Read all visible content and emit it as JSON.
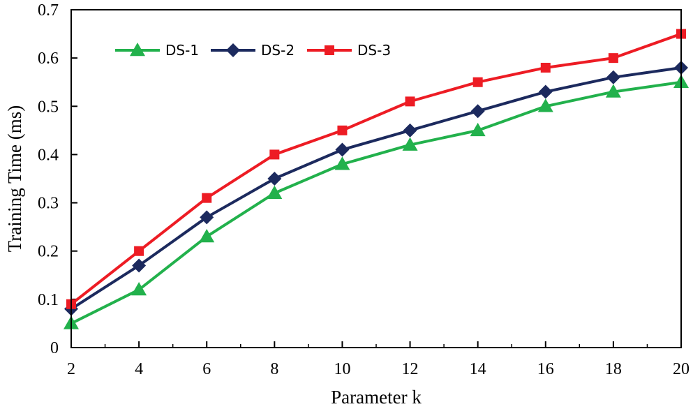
{
  "chart_data": {
    "type": "line",
    "title": "",
    "xlabel": "Parameter k",
    "ylabel": "Training Time (ms)",
    "x": [
      2,
      4,
      6,
      8,
      10,
      12,
      14,
      16,
      18,
      20
    ],
    "xlim": [
      2,
      20
    ],
    "ylim": [
      0,
      0.7
    ],
    "x_ticks": [
      2,
      4,
      6,
      8,
      10,
      12,
      14,
      16,
      18,
      20
    ],
    "x_tick_labels": [
      "2",
      "4",
      "6",
      "8",
      "10",
      "12",
      "14",
      "16",
      "18",
      "20"
    ],
    "y_ticks": [
      0,
      0.1,
      0.2,
      0.3,
      0.4,
      0.5,
      0.6,
      0.7
    ],
    "y_tick_labels": [
      "0",
      "0.1",
      "0.2",
      "0.3",
      "0.4",
      "0.5",
      "0.6",
      "0.7"
    ],
    "grid": false,
    "legend_position": "top-left",
    "series": [
      {
        "name": "DS-1",
        "marker": "triangle",
        "color": "#22b14c",
        "values": [
          0.05,
          0.12,
          0.23,
          0.32,
          0.38,
          0.42,
          0.45,
          0.5,
          0.53,
          0.55
        ]
      },
      {
        "name": "DS-2",
        "marker": "diamond",
        "color": "#1c2a5e",
        "values": [
          0.08,
          0.17,
          0.27,
          0.35,
          0.41,
          0.45,
          0.49,
          0.53,
          0.56,
          0.58
        ]
      },
      {
        "name": "DS-3",
        "marker": "square",
        "color": "#ed1c24",
        "values": [
          0.09,
          0.2,
          0.31,
          0.4,
          0.45,
          0.51,
          0.55,
          0.58,
          0.6,
          0.65
        ]
      }
    ]
  }
}
